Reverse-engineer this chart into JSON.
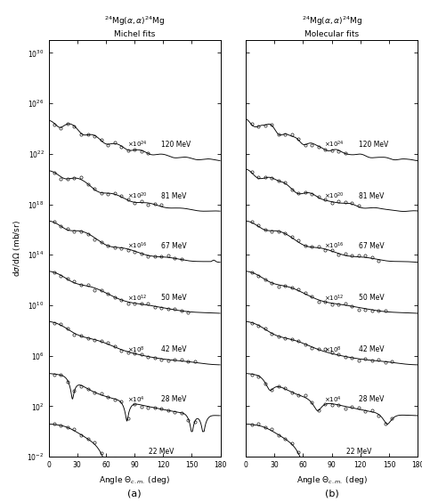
{
  "title_left": "$^{24}$Mg($\\alpha,\\alpha$)$^{24}$Mg\nMichel fits",
  "title_right": "$^{24}$Mg($\\alpha,\\alpha$)$^{24}$Mg\nMolecular fits",
  "xlabel": "Angle $\\Theta_{c.m.}$ (deg)",
  "ylabel": "d$\\sigma$/d$\\Omega$ (mb/sr)",
  "label_a": "(a)",
  "label_b": "(b)",
  "energies": [
    22,
    28,
    42,
    50,
    67,
    81,
    120
  ],
  "mults": [
    0,
    4,
    8,
    12,
    16,
    20,
    24
  ],
  "energy_labels": [
    "22 MeV",
    "28 MeV",
    "42 MeV",
    "50 MeV",
    "67 MeV",
    "81 MeV",
    "120 MeV"
  ],
  "mult_labels": [
    "",
    "\\times10^{4}",
    "\\times10^{8}",
    "\\times10^{12}",
    "\\times10^{16}",
    "\\times10^{20}",
    "\\times10^{24}"
  ],
  "ylim": [
    0.01,
    1e+31
  ],
  "xlim": [
    0,
    180
  ],
  "xticks": [
    0,
    30,
    60,
    90,
    120,
    150,
    180
  ]
}
